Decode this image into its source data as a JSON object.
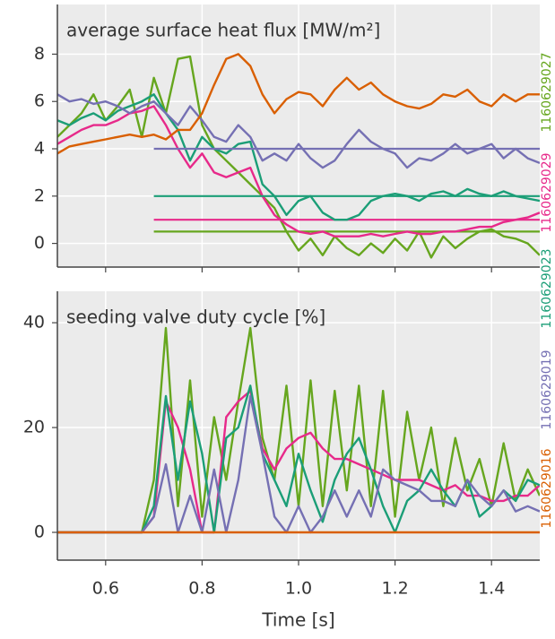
{
  "chart_data": {
    "type": "line",
    "xlabel": "Time [s]",
    "x": [
      0.5,
      0.525,
      0.55,
      0.575,
      0.6,
      0.625,
      0.65,
      0.675,
      0.7,
      0.725,
      0.75,
      0.775,
      0.8,
      0.825,
      0.85,
      0.875,
      0.9,
      0.925,
      0.95,
      0.975,
      1.0,
      1.025,
      1.05,
      1.075,
      1.1,
      1.125,
      1.15,
      1.175,
      1.2,
      1.225,
      1.25,
      1.275,
      1.3,
      1.325,
      1.35,
      1.375,
      1.4,
      1.425,
      1.45,
      1.475,
      1.5
    ],
    "xlim": [
      0.5,
      1.5
    ],
    "xticks": [
      0.6,
      0.8,
      {
        "value": 1,
        "label": "1.0"
      },
      1.2,
      1.4
    ],
    "target_x": [
      0.7,
      1.5
    ],
    "grid": true,
    "panels": [
      {
        "title": "average surface heat flux [MW/m²]",
        "ylim": [
          -1,
          10.1
        ],
        "yticks": [
          0,
          2,
          4,
          6,
          8
        ]
      },
      {
        "title": "seeding valve duty cycle [%]",
        "ylim": [
          -5.3,
          46
        ],
        "yticks": [
          0,
          20,
          40
        ]
      }
    ],
    "series": [
      {
        "name": "1160629027",
        "color": "#66a61e",
        "target": 0.5,
        "values": [
          [
            4.5,
            5.0,
            5.5,
            6.3,
            5.2,
            5.8,
            6.5,
            4.5,
            7.0,
            5.5,
            7.8,
            7.9,
            5.0,
            4.0,
            3.5,
            3.0,
            2.5,
            2.0,
            1.5,
            0.5,
            -0.3,
            0.2,
            -0.5,
            0.3,
            -0.2,
            -0.5,
            0.0,
            -0.4,
            0.2,
            -0.3,
            0.5,
            -0.6,
            0.3,
            -0.2,
            0.2,
            0.5,
            0.6,
            0.3,
            0.2,
            0.0,
            -0.5
          ],
          [
            0,
            0,
            0,
            0,
            0,
            0,
            0,
            0,
            10,
            39,
            5,
            29,
            3,
            22,
            10,
            25,
            39,
            18,
            10,
            28,
            5,
            29,
            5,
            27,
            8,
            28,
            5,
            27,
            3,
            23,
            10,
            20,
            5,
            18,
            8,
            14,
            5,
            17,
            6,
            12,
            7
          ]
        ]
      },
      {
        "name": "1160629029",
        "color": "#e7298a",
        "target": 1,
        "values": [
          [
            4.2,
            4.5,
            4.8,
            5.0,
            5.0,
            5.2,
            5.5,
            5.6,
            5.8,
            5.0,
            4.0,
            3.2,
            3.8,
            3.0,
            2.8,
            3.0,
            3.2,
            2.0,
            1.2,
            0.8,
            0.5,
            0.4,
            0.5,
            0.3,
            0.3,
            0.3,
            0.4,
            0.3,
            0.4,
            0.5,
            0.4,
            0.4,
            0.5,
            0.5,
            0.6,
            0.7,
            0.7,
            0.9,
            1.0,
            1.1,
            1.3
          ],
          [
            0,
            0,
            0,
            0,
            0,
            0,
            0,
            0,
            3,
            25,
            20,
            12,
            0,
            0,
            22,
            25,
            27,
            16,
            12,
            16,
            18,
            19,
            16,
            14,
            14,
            13,
            12,
            11,
            10,
            10,
            10,
            9,
            8,
            9,
            7,
            7,
            6,
            6,
            7,
            7,
            9
          ]
        ]
      },
      {
        "name": "1160629023",
        "color": "#1b9e77",
        "target": 2,
        "values": [
          [
            5.2,
            5.0,
            5.3,
            5.5,
            5.2,
            5.6,
            5.8,
            6.0,
            6.3,
            5.5,
            4.8,
            3.5,
            4.5,
            4.0,
            3.8,
            4.2,
            4.3,
            2.5,
            2.0,
            1.2,
            1.8,
            2.0,
            1.3,
            1.0,
            1.0,
            1.2,
            1.8,
            2.0,
            2.1,
            2.0,
            1.8,
            2.1,
            2.2,
            2.0,
            2.3,
            2.1,
            2.0,
            2.2,
            2.0,
            1.9,
            1.8
          ],
          [
            0,
            0,
            0,
            0,
            0,
            0,
            0,
            0,
            5,
            26,
            10,
            25,
            15,
            0,
            18,
            20,
            28,
            15,
            10,
            5,
            15,
            8,
            2,
            10,
            15,
            18,
            12,
            5,
            0,
            6,
            8,
            12,
            8,
            5,
            10,
            3,
            5,
            8,
            6,
            10,
            9
          ]
        ]
      },
      {
        "name": "1160629019",
        "color": "#7570b3",
        "target": 4,
        "values": [
          [
            6.3,
            6.0,
            6.1,
            5.9,
            6.0,
            5.8,
            5.5,
            5.8,
            6.0,
            5.5,
            5.0,
            5.8,
            5.2,
            4.5,
            4.3,
            5.0,
            4.5,
            3.5,
            3.8,
            3.5,
            4.2,
            3.6,
            3.2,
            3.5,
            4.2,
            4.8,
            4.3,
            4.0,
            3.8,
            3.2,
            3.6,
            3.5,
            3.8,
            4.2,
            3.8,
            4.0,
            4.2,
            3.6,
            4.0,
            3.6,
            3.4
          ],
          [
            0,
            0,
            0,
            0,
            0,
            0,
            0,
            0,
            3,
            13,
            0,
            7,
            0,
            12,
            0,
            10,
            26,
            15,
            3,
            0,
            5,
            0,
            3,
            8,
            3,
            8,
            3,
            12,
            10,
            9,
            8,
            6,
            6,
            5,
            10,
            7,
            5,
            8,
            4,
            5,
            4
          ]
        ]
      },
      {
        "name": "1160629016",
        "color": "#d95f02",
        "values": [
          [
            3.8,
            4.1,
            4.2,
            4.3,
            4.4,
            4.5,
            4.6,
            4.5,
            4.6,
            4.4,
            4.8,
            4.8,
            5.5,
            6.7,
            7.8,
            8.0,
            7.5,
            6.3,
            5.5,
            6.1,
            6.4,
            6.3,
            5.8,
            6.5,
            7.0,
            6.5,
            6.8,
            6.3,
            6.0,
            5.8,
            5.7,
            5.9,
            6.3,
            6.2,
            6.5,
            6.0,
            5.8,
            6.3,
            6.0,
            6.3,
            6.3
          ],
          [
            0,
            0,
            0,
            0,
            0,
            0,
            0,
            0,
            0,
            0,
            0,
            0,
            0,
            0,
            0,
            0,
            0,
            0,
            0,
            0,
            0,
            0,
            0,
            0,
            0,
            0,
            0,
            0,
            0,
            0,
            0,
            0,
            0,
            0,
            0,
            0,
            0,
            0,
            0,
            0,
            0
          ]
        ]
      }
    ]
  }
}
